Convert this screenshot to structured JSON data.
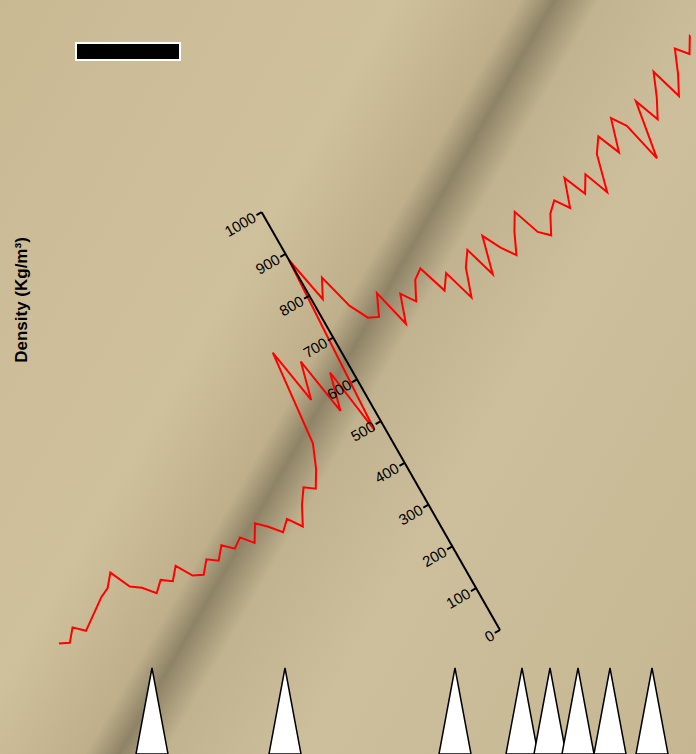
{
  "chart_data": {
    "type": "line",
    "y_label": "Density (Kg/m³)",
    "x": [
      -390,
      -380,
      -370,
      -360,
      -350,
      -340,
      -330,
      -320,
      -310,
      -300,
      -290,
      -280,
      -270,
      -260,
      -250,
      -240,
      -230,
      -220,
      -210,
      -200,
      -190,
      -180,
      -170,
      -160,
      -150,
      -140,
      -130,
      -120,
      -110,
      -100,
      -90,
      -80,
      -70,
      -60,
      -50,
      -40,
      -30,
      -20,
      -10,
      0,
      10,
      20,
      30,
      40,
      50,
      60,
      70,
      80,
      90,
      100,
      110,
      120,
      130,
      140,
      150,
      160,
      170,
      180,
      190,
      200,
      210,
      220,
      230,
      240,
      250,
      260,
      270,
      280,
      290,
      300,
      310,
      320,
      330,
      340,
      350,
      360,
      370,
      380,
      390,
      400,
      410,
      420,
      430,
      440,
      450,
      460
    ],
    "values": [
      430,
      420,
      445,
      425,
      440,
      455,
      470,
      480,
      505,
      460,
      445,
      420,
      440,
      425,
      450,
      415,
      405,
      430,
      415,
      440,
      420,
      435,
      410,
      445,
      425,
      400,
      420,
      390,
      430,
      460,
      445,
      480,
      530,
      735,
      610,
      690,
      560,
      640,
      490,
      885,
      780,
      820,
      740,
      700,
      690,
      735,
      650,
      710,
      680,
      720,
      735,
      670,
      700,
      630,
      690,
      720,
      650,
      730,
      690,
      660,
      705,
      740,
      680,
      660,
      700,
      720,
      690,
      750,
      700,
      735,
      680,
      760,
      790,
      740,
      810,
      780,
      690,
      815,
      760,
      800,
      850,
      780,
      820,
      870,
      845,
      880
    ],
    "color": "#ff0000",
    "xlim": [
      -390,
      460
    ],
    "ylim": [
      0,
      1000
    ],
    "yticks": [
      0,
      100,
      200,
      300,
      400,
      500,
      600,
      700,
      800,
      900,
      1000
    ],
    "tick_labels": "y",
    "grid": false
  }
}
